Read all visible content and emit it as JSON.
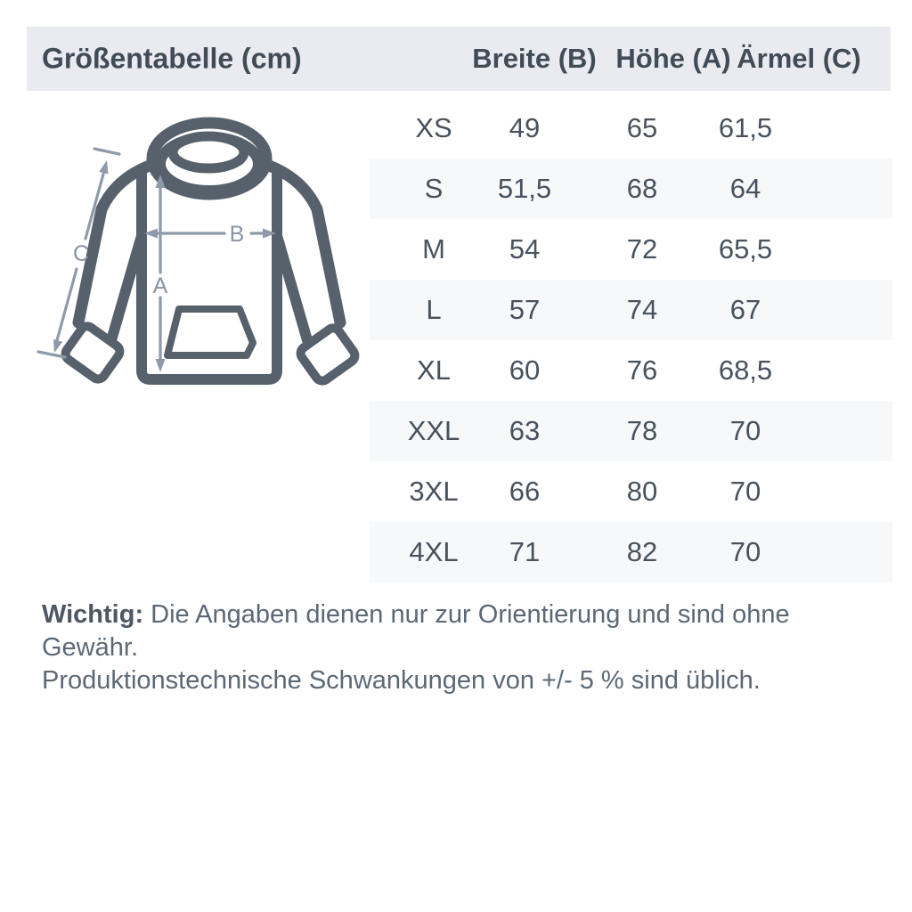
{
  "header": {
    "title": "Größentabelle (cm)",
    "columns": [
      {
        "key": "width",
        "label": "Breite (B)"
      },
      {
        "key": "height",
        "label": "Höhe (A)"
      },
      {
        "key": "sleeve",
        "label": "Ärmel (C)"
      }
    ]
  },
  "diagram": {
    "icon": "hoodie-outline-with-measurement-arrows",
    "label_height": "A",
    "label_width": "B",
    "label_sleeve": "C"
  },
  "table": {
    "unit": "cm",
    "rows": [
      {
        "size": "XS",
        "width": "49",
        "height": "65",
        "sleeve": "61,5"
      },
      {
        "size": "S",
        "width": "51,5",
        "height": "68",
        "sleeve": "64"
      },
      {
        "size": "M",
        "width": "54",
        "height": "72",
        "sleeve": "65,5"
      },
      {
        "size": "L",
        "width": "57",
        "height": "74",
        "sleeve": "67"
      },
      {
        "size": "XL",
        "width": "60",
        "height": "76",
        "sleeve": "68,5"
      },
      {
        "size": "XXL",
        "width": "63",
        "height": "78",
        "sleeve": "70"
      },
      {
        "size": "3XL",
        "width": "66",
        "height": "80",
        "sleeve": "70"
      },
      {
        "size": "4XL",
        "width": "71",
        "height": "82",
        "sleeve": "70"
      }
    ]
  },
  "note": {
    "label": "Wichtig:",
    "line1": "Die Angaben dienen nur zur Orientierung und sind ohne Gewähr.",
    "line2": "Produktionstechnische Schwankungen von +/- 5 % sind üblich."
  },
  "colors": {
    "header_band": "#e9ebf1",
    "row_stripe": "#f7f8fa",
    "heading_text": "#414c57",
    "value_text": "#47525d",
    "note_text": "#5c6875",
    "hoodie_outline": "#57616b",
    "arrow": "#8e9aaa"
  }
}
